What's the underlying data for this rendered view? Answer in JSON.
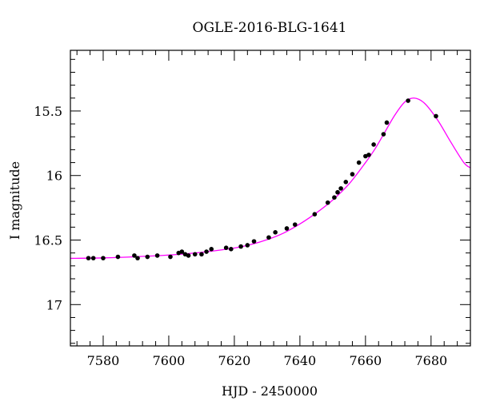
{
  "chart_data": {
    "type": "scatter",
    "title": "OGLE-2016-BLG-1641",
    "xlabel": "HJD - 2450000",
    "ylabel": "I magnitude",
    "xlim": [
      7570,
      7692
    ],
    "ylim": [
      17.32,
      15.03
    ],
    "y_inverted": true,
    "grid": false,
    "legend": "none",
    "xticks": [
      7580,
      7600,
      7620,
      7640,
      7660,
      7680
    ],
    "xtick_labels": [
      "7580",
      "7600",
      "7620",
      "7640",
      "7660",
      "7680"
    ],
    "yticks": [
      15.5,
      16,
      16.5,
      17
    ],
    "ytick_labels": [
      "15.5",
      "16",
      "16.5",
      "17"
    ],
    "x_minor_step": 4,
    "y_minor_step": 0.1,
    "colors": {
      "points": "#000000",
      "model": "#ff00ff",
      "frame": "#000000"
    },
    "series": [
      {
        "kind": "points",
        "x": [
          7575.5,
          7577,
          7580,
          7584.5,
          7589.5,
          7590.5,
          7593.5,
          7596.5,
          7600.5,
          7603,
          7604,
          7605,
          7606,
          7608,
          7610,
          7611.5,
          7613,
          7617.5,
          7619,
          7622,
          7624,
          7626,
          7630.5,
          7632.5,
          7636,
          7638.5,
          7644.5,
          7648.5,
          7650.5,
          7651.5,
          7652.5,
          7654,
          7656,
          7658,
          7660,
          7661,
          7662.5,
          7665.5,
          7666.5,
          7673,
          7681.5
        ],
        "y": [
          16.64,
          16.64,
          16.64,
          16.63,
          16.62,
          16.64,
          16.63,
          16.62,
          16.63,
          16.6,
          16.59,
          16.61,
          16.62,
          16.61,
          16.61,
          16.59,
          16.57,
          16.56,
          16.57,
          16.55,
          16.54,
          16.51,
          16.48,
          16.44,
          16.41,
          16.38,
          16.3,
          16.21,
          16.17,
          16.13,
          16.1,
          16.05,
          15.99,
          15.9,
          15.85,
          15.84,
          15.76,
          15.68,
          15.59,
          15.42,
          15.54
        ]
      },
      {
        "kind": "model",
        "x": [
          7570,
          7580,
          7590,
          7600,
          7610,
          7620,
          7625,
          7630,
          7635,
          7640,
          7645,
          7650,
          7655,
          7660,
          7663,
          7666,
          7669,
          7672,
          7674.8,
          7678,
          7682,
          7686,
          7690,
          7692
        ],
        "y": [
          16.642,
          16.638,
          16.629,
          16.616,
          16.595,
          16.562,
          16.535,
          16.497,
          16.446,
          16.375,
          16.29,
          16.19,
          16.065,
          15.9,
          15.79,
          15.66,
          15.53,
          15.43,
          15.4,
          15.44,
          15.57,
          15.74,
          15.9,
          15.94
        ]
      }
    ]
  }
}
